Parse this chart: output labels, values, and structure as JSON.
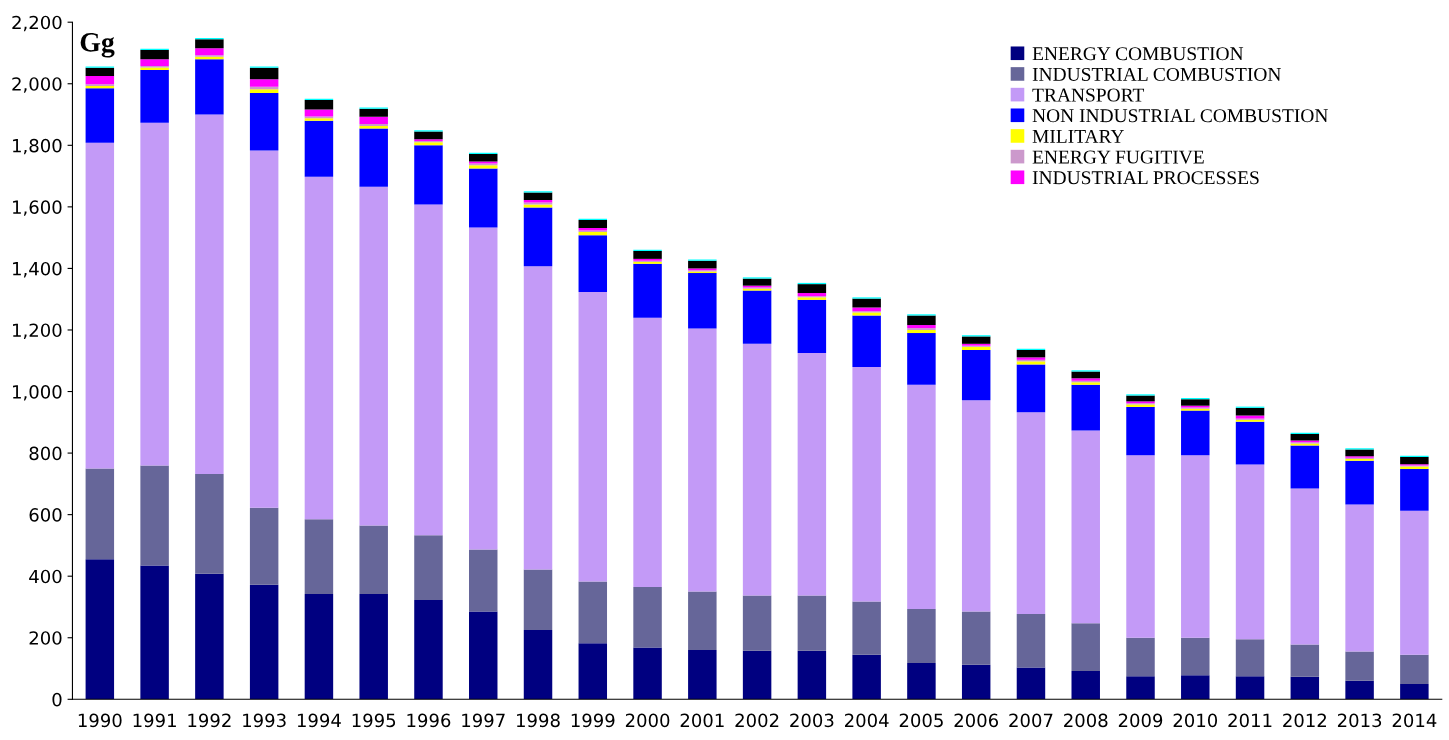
{
  "chart_data": {
    "type": "bar",
    "stacked": true,
    "ylabel": "Gg",
    "categories": [
      "1990",
      "1991",
      "1992",
      "1993",
      "1994",
      "1995",
      "1996",
      "1997",
      "1998",
      "1999",
      "2000",
      "2001",
      "2002",
      "2003",
      "2004",
      "2005",
      "2006",
      "2007",
      "2008",
      "2009",
      "2010",
      "2011",
      "2012",
      "2013",
      "2014"
    ],
    "series": [
      {
        "name": "ENERGY COMBUSTION",
        "color": "#000080",
        "values": [
          455,
          435,
          408,
          372,
          342,
          342,
          323,
          285,
          225,
          182,
          168,
          160,
          158,
          158,
          145,
          118,
          112,
          103,
          92,
          75,
          78,
          75,
          73,
          60,
          50
        ]
      },
      {
        "name": "INDUSTRIAL COMBUSTION",
        "color": "#666699",
        "values": [
          295,
          325,
          324,
          250,
          243,
          223,
          210,
          202,
          197,
          201,
          197,
          190,
          179,
          179,
          173,
          175,
          173,
          174,
          155,
          125,
          122,
          120,
          105,
          95,
          95
        ]
      },
      {
        "name": "TRANSPORT",
        "color": "#c39af7",
        "values": [
          1058,
          1113,
          1168,
          1161,
          1113,
          1100,
          1075,
          1046,
          985,
          940,
          875,
          855,
          818,
          788,
          762,
          729,
          687,
          656,
          626,
          593,
          593,
          568,
          507,
          478,
          468
        ]
      },
      {
        "name": "NON INDUSTRIAL COMBUSTION",
        "color": "#0000ff",
        "values": [
          177,
          172,
          180,
          187,
          182,
          190,
          192,
          192,
          191,
          185,
          175,
          180,
          173,
          173,
          167,
          168,
          163,
          155,
          149,
          157,
          145,
          139,
          140,
          142,
          135
        ]
      },
      {
        "name": "MILITARY",
        "color": "#ffff00",
        "values": [
          8,
          8,
          8,
          12,
          8,
          8,
          10,
          10,
          10,
          10,
          6,
          5,
          6,
          8,
          10,
          10,
          10,
          10,
          8,
          8,
          6,
          6,
          6,
          6,
          8
        ]
      },
      {
        "name": "ENERGY FUGITIVE",
        "color": "#cc99cc",
        "values": [
          5,
          5,
          5,
          8,
          6,
          6,
          4,
          6,
          6,
          5,
          4,
          4,
          4,
          4,
          4,
          6,
          4,
          5,
          5,
          4,
          4,
          4,
          4,
          4,
          4
        ]
      },
      {
        "name": "INDUSTRIAL PROCESSES",
        "color": "#ff00ff",
        "values": [
          27,
          22,
          22,
          25,
          22,
          24,
          6,
          6,
          8,
          8,
          6,
          6,
          6,
          10,
          12,
          10,
          6,
          8,
          8,
          6,
          6,
          10,
          6,
          5,
          4
        ]
      },
      {
        "color": "#000000",
        "values": [
          27,
          30,
          30,
          37,
          31,
          26,
          25,
          25,
          25,
          26,
          26,
          25,
          23,
          29,
          29,
          31,
          24,
          24,
          22,
          19,
          21,
          25,
          21,
          22,
          23
        ]
      },
      {
        "color": "#00ffff",
        "values": [
          4,
          4,
          4,
          4,
          4,
          4,
          4,
          4,
          4,
          4,
          4,
          4,
          4,
          4,
          4,
          4,
          4,
          4,
          4,
          4,
          4,
          4,
          4,
          4,
          4
        ]
      }
    ],
    "ylim": [
      0,
      2200
    ],
    "yticks": [
      0,
      200,
      400,
      600,
      800,
      {
        "value": 1000,
        "label": "1,000"
      },
      {
        "value": 1200,
        "label": "1,200"
      },
      {
        "value": 1400,
        "label": "1,400"
      },
      {
        "value": 1600,
        "label": "1,600"
      },
      {
        "value": 1800,
        "label": "1,800"
      },
      {
        "value": 2000,
        "label": "2,000"
      },
      {
        "value": 2200,
        "label": "2,200"
      }
    ],
    "grid": false,
    "legend": "top right"
  }
}
